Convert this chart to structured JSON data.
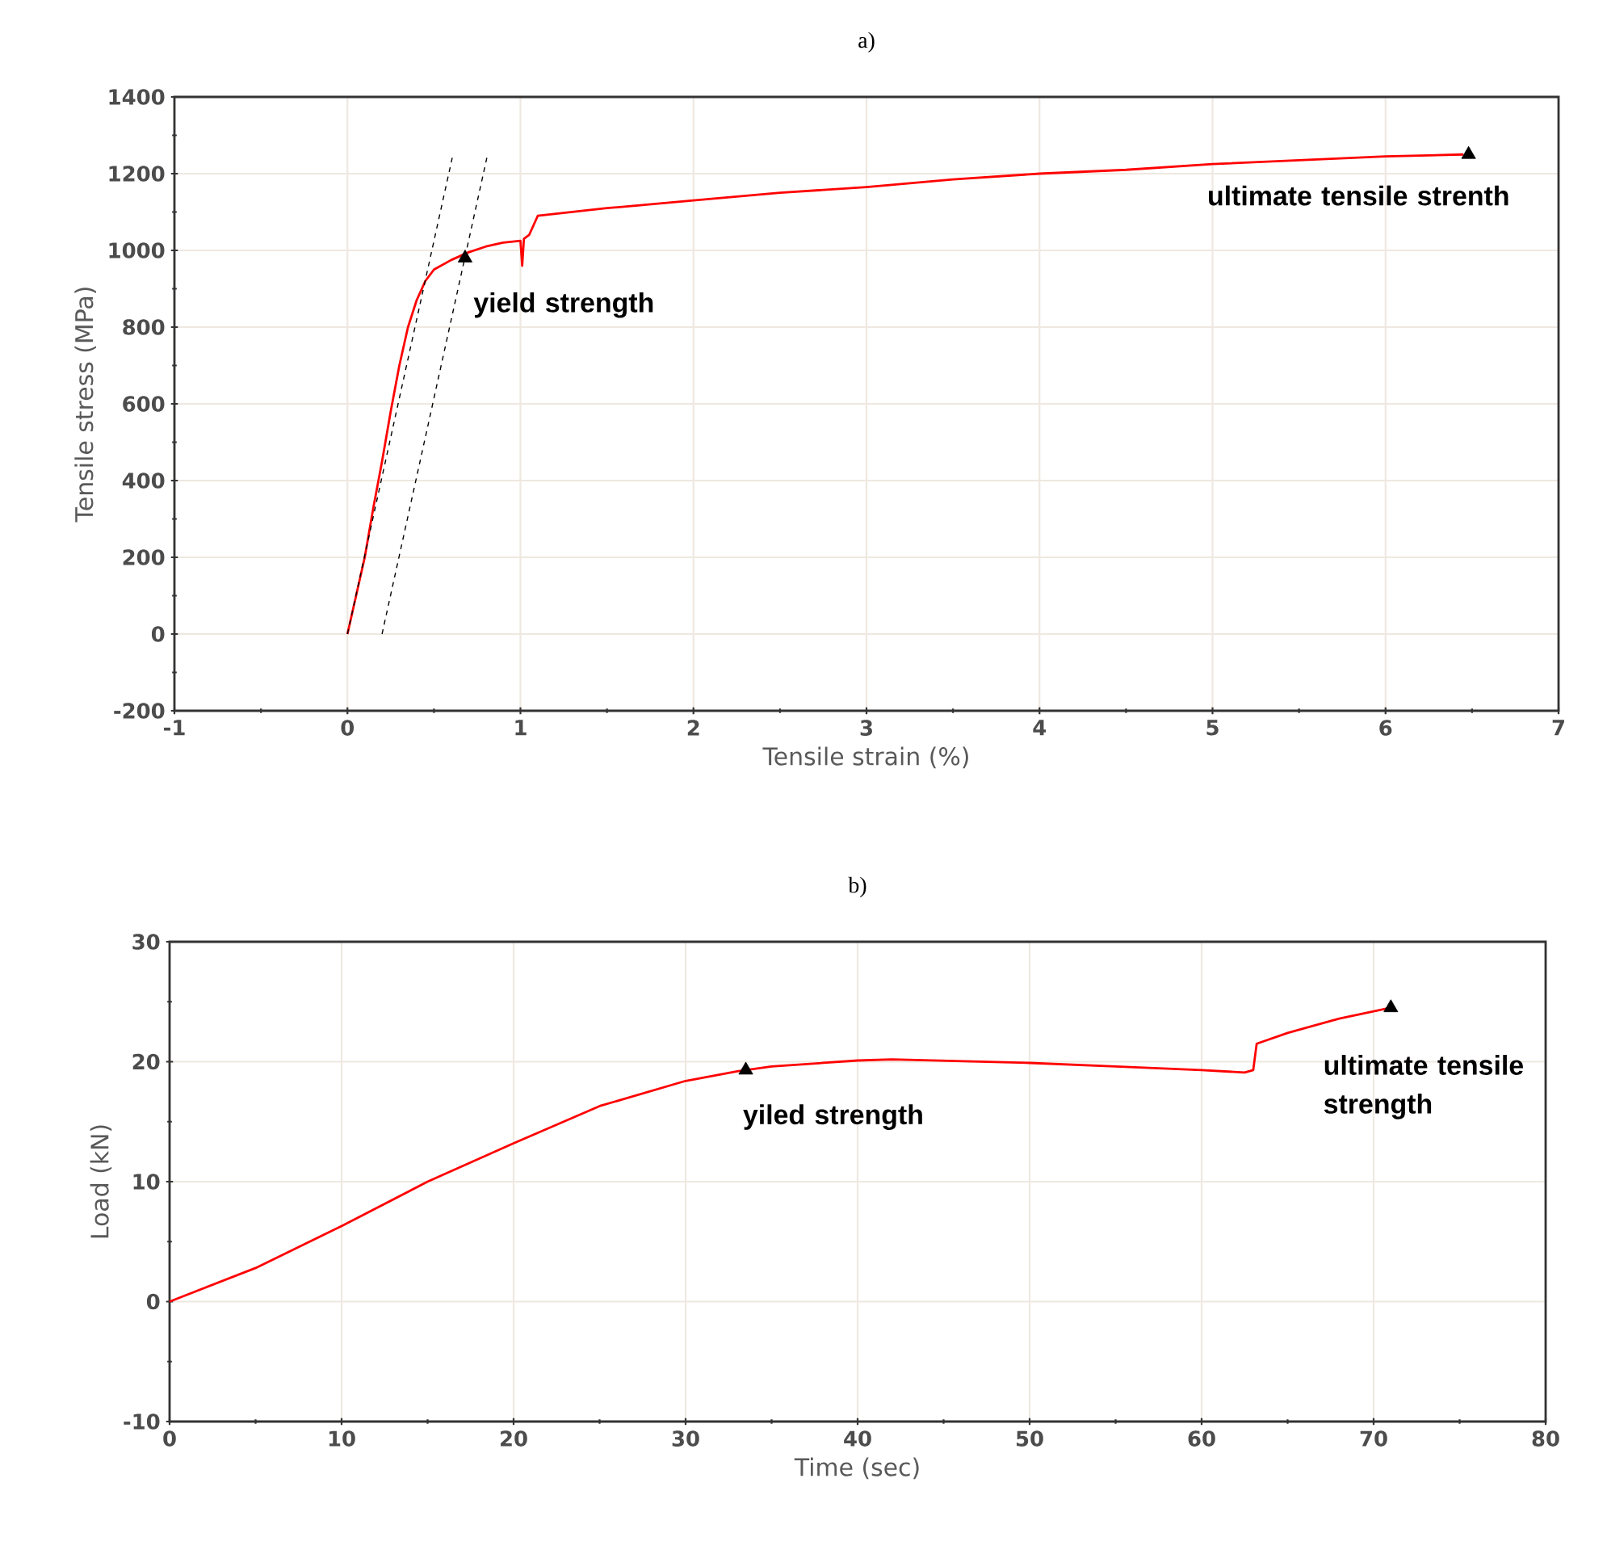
{
  "chart_data": [
    {
      "type": "line",
      "title": "a)",
      "xlabel": "Tensile strain (%)",
      "ylabel": "Tensile stress (MPa)",
      "xlim": [
        -1,
        7
      ],
      "ylim": [
        -200,
        1400
      ],
      "xticks": [
        -1,
        0,
        1,
        2,
        3,
        4,
        5,
        6,
        7
      ],
      "yticks": [
        -200,
        0,
        200,
        400,
        600,
        800,
        1000,
        1200,
        1400
      ],
      "grid": true,
      "series": [
        {
          "color": "#ff0000",
          "x": [
            0,
            0.05,
            0.1,
            0.15,
            0.2,
            0.25,
            0.3,
            0.35,
            0.4,
            0.45,
            0.5,
            0.6,
            0.7,
            0.8,
            0.9,
            1.0,
            1.01,
            1.02,
            1.05,
            1.1,
            1.5,
            2,
            2.5,
            3,
            3.5,
            4,
            4.5,
            5,
            5.5,
            6,
            6.45
          ],
          "values": [
            0,
            100,
            200,
            330,
            450,
            580,
            700,
            800,
            870,
            920,
            950,
            975,
            995,
            1010,
            1020,
            1025,
            960,
            1030,
            1040,
            1090,
            1110,
            1130,
            1150,
            1165,
            1185,
            1200,
            1210,
            1225,
            1235,
            1245,
            1250
          ]
        },
        {
          "type": "line",
          "color": "#000000",
          "line_style": "dashed",
          "x": [
            0,
            0.61
          ],
          "values": [
            0,
            1250
          ]
        },
        {
          "type": "line",
          "color": "#000000",
          "line_style": "dashed",
          "x": [
            0.2,
            0.81
          ],
          "values": [
            0,
            1250
          ]
        }
      ],
      "annotations": [
        {
          "text": "yield strength",
          "x": 0.68,
          "y": 980
        },
        {
          "text": "ultimate tensile strenth",
          "x": 6.48,
          "y": 1250
        }
      ]
    },
    {
      "type": "line",
      "title": "b)",
      "xlabel": "Time (sec)",
      "ylabel": "Load (kN)",
      "xlim": [
        0,
        80
      ],
      "ylim": [
        -10,
        30
      ],
      "xticks": [
        0,
        10,
        20,
        30,
        40,
        50,
        60,
        70,
        80
      ],
      "yticks": [
        -10,
        0,
        10,
        20,
        30
      ],
      "grid": true,
      "series": [
        {
          "color": "#ff0000",
          "x": [
            0,
            5,
            10,
            15,
            20,
            25,
            30,
            33,
            35,
            40,
            42,
            50,
            55,
            60,
            62.5,
            63,
            63.2,
            65,
            68,
            70,
            71
          ],
          "values": [
            0,
            2.8,
            6.3,
            10,
            13.2,
            16.3,
            18.4,
            19.2,
            19.6,
            20.1,
            20.2,
            19.9,
            19.6,
            19.3,
            19.1,
            19.3,
            21.5,
            22.4,
            23.6,
            24.2,
            24.5
          ]
        }
      ],
      "annotations": [
        {
          "text": "yiled strength",
          "x": 33.5,
          "y": 19.3
        },
        {
          "text": "ultimate tensile strength",
          "x": 71,
          "y": 24.5
        }
      ]
    }
  ]
}
